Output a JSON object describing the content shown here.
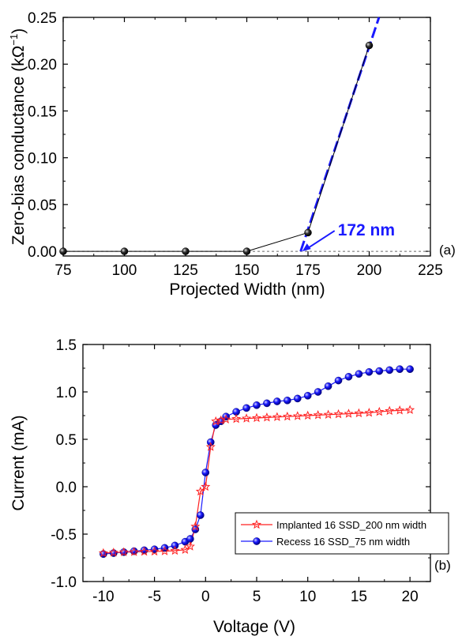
{
  "chart_data": [
    {
      "type": "scatter",
      "panel_label": "(a)",
      "xlabel": "Projected Width (nm)",
      "ylabel": "Zero-bias conductance (kΩ",
      "ylabel_sup": "−1",
      "ylabel_close": ")",
      "xlim": [
        75,
        225
      ],
      "ylim": [
        -0.005,
        0.25
      ],
      "xticks": [
        75,
        100,
        125,
        150,
        175,
        200,
        225
      ],
      "xtick_labels": [
        "75",
        "100",
        "125",
        "150",
        "175",
        "200",
        "225"
      ],
      "yticks": [
        0.0,
        0.05,
        0.1,
        0.15,
        0.2,
        0.25
      ],
      "ytick_labels": [
        "0.00",
        "0.05",
        "0.10",
        "0.15",
        "0.20",
        "0.25"
      ],
      "series": [
        {
          "x": [
            75,
            100,
            125,
            150,
            175,
            200
          ],
          "y": [
            0.0,
            0.0,
            0.0,
            0.0,
            0.02,
            0.22
          ],
          "marker": "sphere",
          "color": "#000000"
        }
      ],
      "fit_line": {
        "x": [
          172,
          204
        ],
        "y": [
          0.0,
          0.25
        ],
        "color": "#1a1aff",
        "style": "dashed"
      },
      "zero_line": {
        "y": 0,
        "style": "dotted",
        "color": "#666666"
      },
      "annotation": {
        "text": "172 nm",
        "x": 172,
        "y": 0.0,
        "color": "#1a1aff"
      },
      "grid": false
    },
    {
      "type": "line",
      "panel_label": "(b)",
      "xlabel": "Voltage (V)",
      "ylabel": "Current (mA)",
      "xlim": [
        -12,
        22
      ],
      "ylim": [
        -1.0,
        1.5
      ],
      "xticks": [
        -10,
        -5,
        0,
        5,
        10,
        15,
        20
      ],
      "xtick_labels": [
        "-10",
        "-5",
        "0",
        "5",
        "10",
        "15",
        "20"
      ],
      "yticks": [
        -1.0,
        -0.5,
        0.0,
        0.5,
        1.0,
        1.5
      ],
      "ytick_labels": [
        "-1.0",
        "-0.5",
        "0.0",
        "0.5",
        "1.0",
        "1.5"
      ],
      "series": [
        {
          "name": "Implanted 16 SSD_200 nm width",
          "color": "#ff2020",
          "marker": "star",
          "x": [
            -10,
            -9,
            -8,
            -7,
            -6,
            -5,
            -4,
            -3,
            -2,
            -1.5,
            -1,
            -0.5,
            0,
            0.5,
            1,
            1.5,
            2,
            3,
            4,
            5,
            6,
            7,
            8,
            9,
            10,
            11,
            12,
            13,
            14,
            15,
            16,
            17,
            18,
            19,
            20
          ],
          "y": [
            -0.7,
            -0.695,
            -0.69,
            -0.688,
            -0.685,
            -0.683,
            -0.68,
            -0.675,
            -0.665,
            -0.63,
            -0.42,
            -0.05,
            0.0,
            0.42,
            0.69,
            0.7,
            0.71,
            0.715,
            0.72,
            0.725,
            0.73,
            0.735,
            0.74,
            0.745,
            0.75,
            0.755,
            0.76,
            0.765,
            0.77,
            0.775,
            0.78,
            0.79,
            0.8,
            0.805,
            0.81
          ]
        },
        {
          "name": "Recess 16 SSD_75 nm width",
          "color": "#1a1aff",
          "marker": "sphere",
          "x": [
            -10,
            -9,
            -8,
            -7,
            -6,
            -5,
            -4,
            -3,
            -2,
            -1.5,
            -1,
            -0.5,
            0,
            0.5,
            1,
            1.5,
            2,
            3,
            4,
            5,
            6,
            7,
            8,
            9,
            10,
            11,
            12,
            13,
            14,
            15,
            16,
            17,
            18,
            19,
            20
          ],
          "y": [
            -0.71,
            -0.7,
            -0.69,
            -0.68,
            -0.67,
            -0.66,
            -0.645,
            -0.62,
            -0.58,
            -0.55,
            -0.45,
            -0.3,
            0.15,
            0.47,
            0.65,
            0.69,
            0.74,
            0.79,
            0.83,
            0.86,
            0.88,
            0.9,
            0.91,
            0.93,
            0.96,
            1.0,
            1.06,
            1.12,
            1.16,
            1.19,
            1.21,
            1.22,
            1.23,
            1.24,
            1.24
          ]
        }
      ],
      "legend_position": "bottom-right",
      "grid": false
    }
  ]
}
